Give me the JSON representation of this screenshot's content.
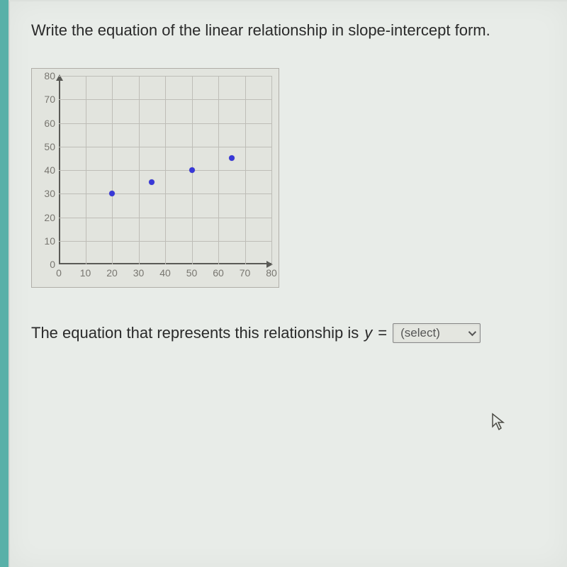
{
  "title": "Write the equation of the linear relationship in slope-intercept form.",
  "chart": {
    "type": "scatter",
    "xlim": [
      0,
      80
    ],
    "ylim": [
      0,
      80
    ],
    "xtick_step": 10,
    "ytick_step": 10,
    "xlabels": [
      "0",
      "10",
      "20",
      "30",
      "40",
      "50",
      "60",
      "70",
      "80"
    ],
    "ylabels": [
      "0",
      "10",
      "20",
      "30",
      "40",
      "50",
      "60",
      "70",
      "80"
    ],
    "grid_color": "#bebdb7",
    "axis_color": "#5a5a56",
    "background_color": "#e2e4de",
    "point_color": "#3838d8",
    "point_radius": 4,
    "points": [
      {
        "x": 20,
        "y": 30
      },
      {
        "x": 35,
        "y": 35
      },
      {
        "x": 50,
        "y": 40
      },
      {
        "x": 65,
        "y": 45
      }
    ],
    "label_fontsize": 14,
    "label_color": "#787670"
  },
  "answer": {
    "prefix": "The equation that represents this relationship is ",
    "variable": "y",
    "equals": " = ",
    "select_placeholder": "(select)"
  }
}
